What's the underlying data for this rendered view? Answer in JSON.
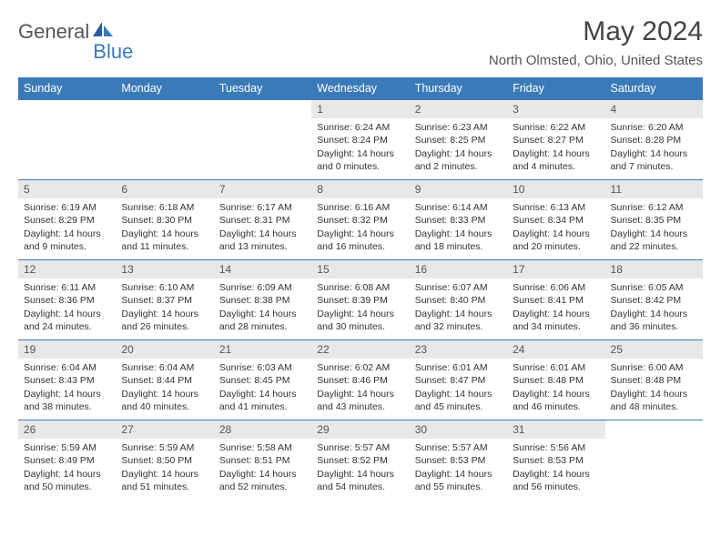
{
  "logo": {
    "word1": "General",
    "word2": "Blue"
  },
  "title": "May 2024",
  "subtitle": "North Olmsted, Ohio, United States",
  "colors": {
    "header_bg": "#3b7ab8",
    "daynum_bg": "#e8e8e8",
    "border": "#3b7ab8",
    "text": "#333333",
    "logo_gray": "#555555",
    "logo_blue": "#3b7ab8"
  },
  "days_of_week": [
    "Sunday",
    "Monday",
    "Tuesday",
    "Wednesday",
    "Thursday",
    "Friday",
    "Saturday"
  ],
  "weeks": [
    [
      {
        "empty": true
      },
      {
        "empty": true
      },
      {
        "empty": true
      },
      {
        "num": "1",
        "sunrise": "Sunrise: 6:24 AM",
        "sunset": "Sunset: 8:24 PM",
        "daylight": "Daylight: 14 hours and 0 minutes."
      },
      {
        "num": "2",
        "sunrise": "Sunrise: 6:23 AM",
        "sunset": "Sunset: 8:25 PM",
        "daylight": "Daylight: 14 hours and 2 minutes."
      },
      {
        "num": "3",
        "sunrise": "Sunrise: 6:22 AM",
        "sunset": "Sunset: 8:27 PM",
        "daylight": "Daylight: 14 hours and 4 minutes."
      },
      {
        "num": "4",
        "sunrise": "Sunrise: 6:20 AM",
        "sunset": "Sunset: 8:28 PM",
        "daylight": "Daylight: 14 hours and 7 minutes."
      }
    ],
    [
      {
        "num": "5",
        "sunrise": "Sunrise: 6:19 AM",
        "sunset": "Sunset: 8:29 PM",
        "daylight": "Daylight: 14 hours and 9 minutes."
      },
      {
        "num": "6",
        "sunrise": "Sunrise: 6:18 AM",
        "sunset": "Sunset: 8:30 PM",
        "daylight": "Daylight: 14 hours and 11 minutes."
      },
      {
        "num": "7",
        "sunrise": "Sunrise: 6:17 AM",
        "sunset": "Sunset: 8:31 PM",
        "daylight": "Daylight: 14 hours and 13 minutes."
      },
      {
        "num": "8",
        "sunrise": "Sunrise: 6:16 AM",
        "sunset": "Sunset: 8:32 PM",
        "daylight": "Daylight: 14 hours and 16 minutes."
      },
      {
        "num": "9",
        "sunrise": "Sunrise: 6:14 AM",
        "sunset": "Sunset: 8:33 PM",
        "daylight": "Daylight: 14 hours and 18 minutes."
      },
      {
        "num": "10",
        "sunrise": "Sunrise: 6:13 AM",
        "sunset": "Sunset: 8:34 PM",
        "daylight": "Daylight: 14 hours and 20 minutes."
      },
      {
        "num": "11",
        "sunrise": "Sunrise: 6:12 AM",
        "sunset": "Sunset: 8:35 PM",
        "daylight": "Daylight: 14 hours and 22 minutes."
      }
    ],
    [
      {
        "num": "12",
        "sunrise": "Sunrise: 6:11 AM",
        "sunset": "Sunset: 8:36 PM",
        "daylight": "Daylight: 14 hours and 24 minutes."
      },
      {
        "num": "13",
        "sunrise": "Sunrise: 6:10 AM",
        "sunset": "Sunset: 8:37 PM",
        "daylight": "Daylight: 14 hours and 26 minutes."
      },
      {
        "num": "14",
        "sunrise": "Sunrise: 6:09 AM",
        "sunset": "Sunset: 8:38 PM",
        "daylight": "Daylight: 14 hours and 28 minutes."
      },
      {
        "num": "15",
        "sunrise": "Sunrise: 6:08 AM",
        "sunset": "Sunset: 8:39 PM",
        "daylight": "Daylight: 14 hours and 30 minutes."
      },
      {
        "num": "16",
        "sunrise": "Sunrise: 6:07 AM",
        "sunset": "Sunset: 8:40 PM",
        "daylight": "Daylight: 14 hours and 32 minutes."
      },
      {
        "num": "17",
        "sunrise": "Sunrise: 6:06 AM",
        "sunset": "Sunset: 8:41 PM",
        "daylight": "Daylight: 14 hours and 34 minutes."
      },
      {
        "num": "18",
        "sunrise": "Sunrise: 6:05 AM",
        "sunset": "Sunset: 8:42 PM",
        "daylight": "Daylight: 14 hours and 36 minutes."
      }
    ],
    [
      {
        "num": "19",
        "sunrise": "Sunrise: 6:04 AM",
        "sunset": "Sunset: 8:43 PM",
        "daylight": "Daylight: 14 hours and 38 minutes."
      },
      {
        "num": "20",
        "sunrise": "Sunrise: 6:04 AM",
        "sunset": "Sunset: 8:44 PM",
        "daylight": "Daylight: 14 hours and 40 minutes."
      },
      {
        "num": "21",
        "sunrise": "Sunrise: 6:03 AM",
        "sunset": "Sunset: 8:45 PM",
        "daylight": "Daylight: 14 hours and 41 minutes."
      },
      {
        "num": "22",
        "sunrise": "Sunrise: 6:02 AM",
        "sunset": "Sunset: 8:46 PM",
        "daylight": "Daylight: 14 hours and 43 minutes."
      },
      {
        "num": "23",
        "sunrise": "Sunrise: 6:01 AM",
        "sunset": "Sunset: 8:47 PM",
        "daylight": "Daylight: 14 hours and 45 minutes."
      },
      {
        "num": "24",
        "sunrise": "Sunrise: 6:01 AM",
        "sunset": "Sunset: 8:48 PM",
        "daylight": "Daylight: 14 hours and 46 minutes."
      },
      {
        "num": "25",
        "sunrise": "Sunrise: 6:00 AM",
        "sunset": "Sunset: 8:48 PM",
        "daylight": "Daylight: 14 hours and 48 minutes."
      }
    ],
    [
      {
        "num": "26",
        "sunrise": "Sunrise: 5:59 AM",
        "sunset": "Sunset: 8:49 PM",
        "daylight": "Daylight: 14 hours and 50 minutes."
      },
      {
        "num": "27",
        "sunrise": "Sunrise: 5:59 AM",
        "sunset": "Sunset: 8:50 PM",
        "daylight": "Daylight: 14 hours and 51 minutes."
      },
      {
        "num": "28",
        "sunrise": "Sunrise: 5:58 AM",
        "sunset": "Sunset: 8:51 PM",
        "daylight": "Daylight: 14 hours and 52 minutes."
      },
      {
        "num": "29",
        "sunrise": "Sunrise: 5:57 AM",
        "sunset": "Sunset: 8:52 PM",
        "daylight": "Daylight: 14 hours and 54 minutes."
      },
      {
        "num": "30",
        "sunrise": "Sunrise: 5:57 AM",
        "sunset": "Sunset: 8:53 PM",
        "daylight": "Daylight: 14 hours and 55 minutes."
      },
      {
        "num": "31",
        "sunrise": "Sunrise: 5:56 AM",
        "sunset": "Sunset: 8:53 PM",
        "daylight": "Daylight: 14 hours and 56 minutes."
      },
      {
        "empty": true
      }
    ]
  ]
}
